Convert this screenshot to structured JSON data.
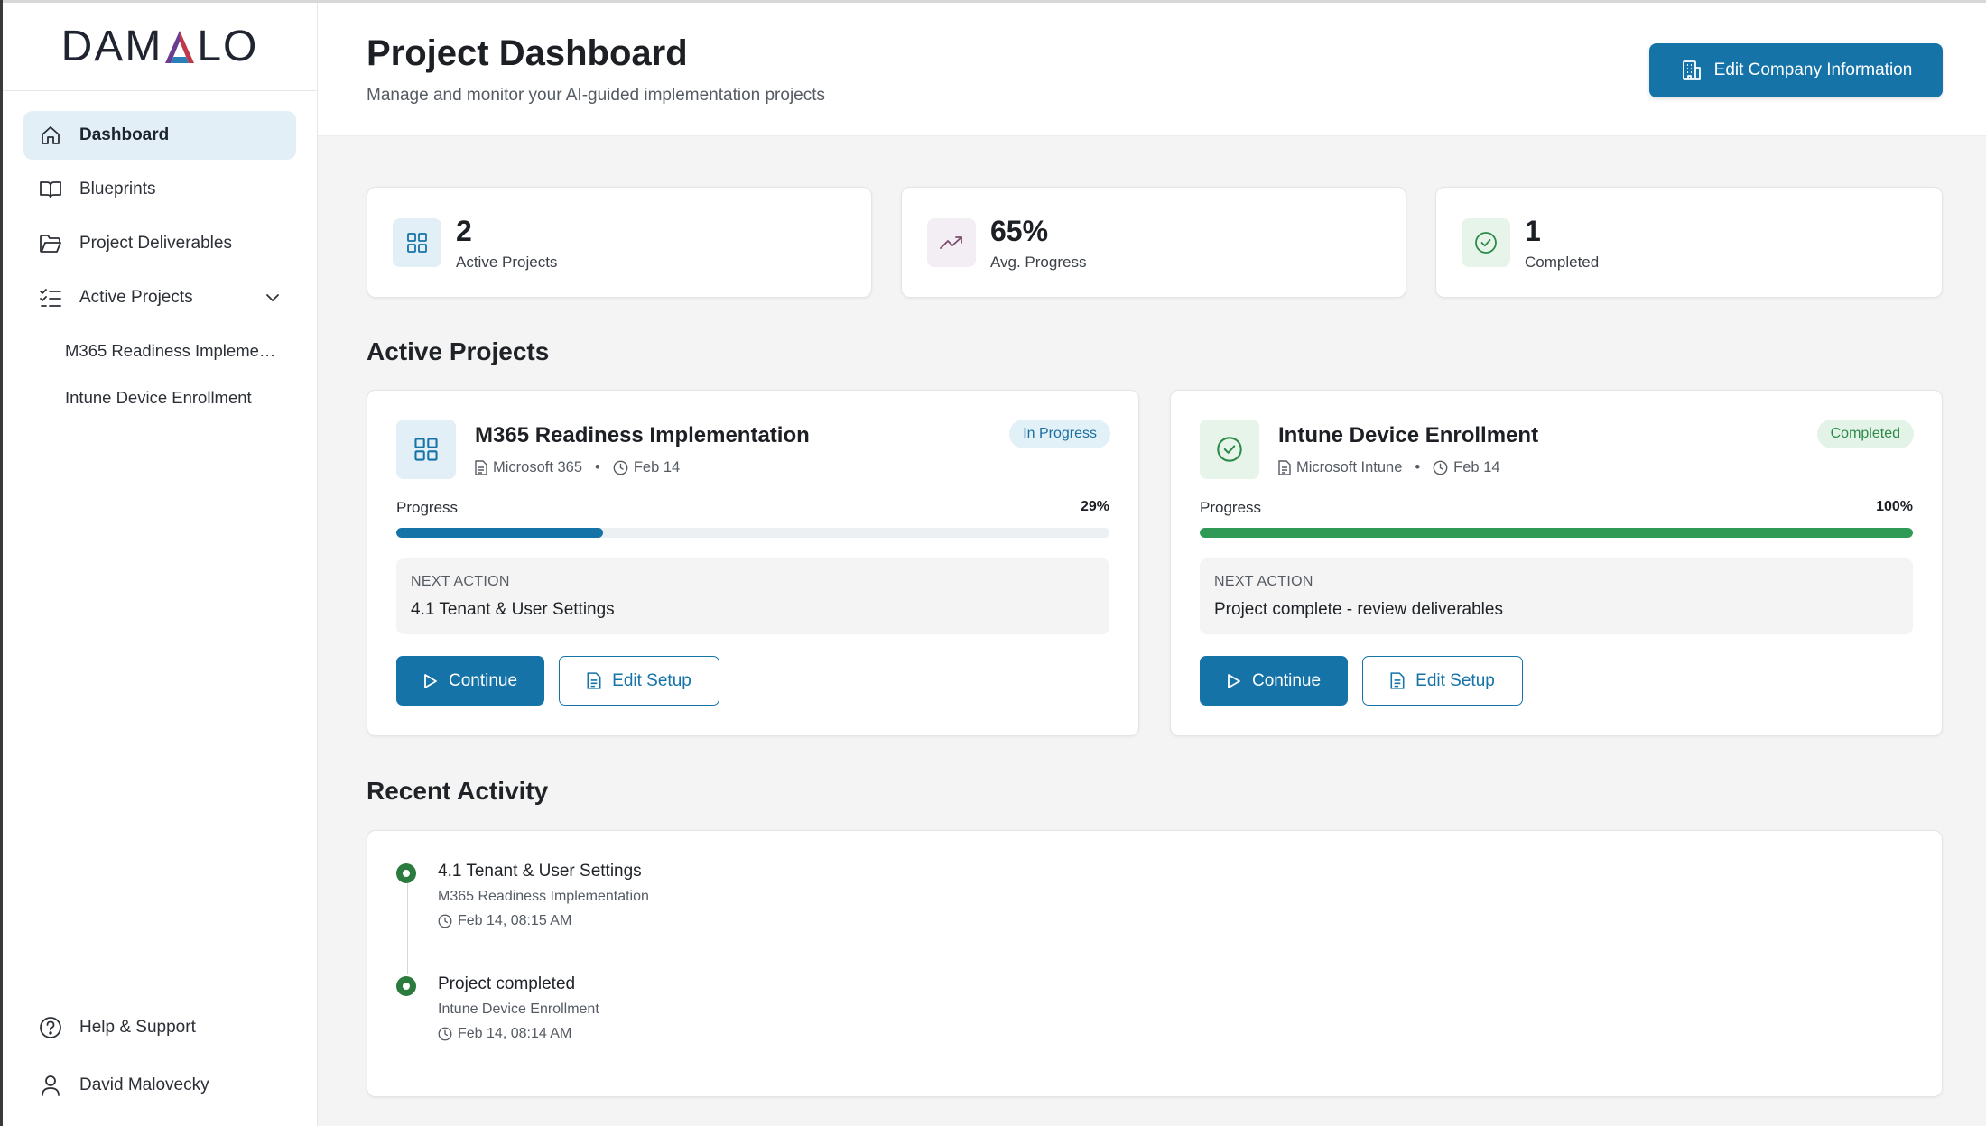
{
  "brand": {
    "name_left": "DAM",
    "name_right": "LO",
    "logo_mark": "A-triangle"
  },
  "sidebar": {
    "items": [
      {
        "label": "Dashboard",
        "icon": "home-icon",
        "active": true
      },
      {
        "label": "Blueprints",
        "icon": "book-icon"
      },
      {
        "label": "Project Deliverables",
        "icon": "folder-icon"
      },
      {
        "label": "Active Projects",
        "icon": "list-check-icon",
        "expanded": true
      }
    ],
    "sub_items": [
      {
        "label": "M365 Readiness Impleme…"
      },
      {
        "label": "Intune Device Enrollment"
      }
    ],
    "bottom": [
      {
        "label": "Help & Support",
        "icon": "help-circle-icon"
      },
      {
        "label": "David Malovecky",
        "icon": "user-icon"
      }
    ]
  },
  "header": {
    "title": "Project Dashboard",
    "subtitle": "Manage and monitor your AI-guided implementation projects",
    "edit_company_label": "Edit Company Information"
  },
  "stats": [
    {
      "value": "2",
      "label": "Active Projects",
      "icon": "grid-icon"
    },
    {
      "value": "65%",
      "label": "Avg. Progress",
      "icon": "trending-up-icon"
    },
    {
      "value": "1",
      "label": "Completed",
      "icon": "check-circle-icon"
    }
  ],
  "sections": {
    "active_projects": "Active Projects",
    "recent_activity": "Recent Activity"
  },
  "projects": [
    {
      "title": "M365 Readiness Implementation",
      "blueprint": "Microsoft 365",
      "date": "Feb 14",
      "status": "In Progress",
      "progress_label": "Progress",
      "progress_value": 29,
      "progress_text": "29%",
      "next_action_label": "NEXT ACTION",
      "next_action": "4.1 Tenant & User Settings",
      "continue_label": "Continue",
      "edit_label": "Edit Setup",
      "icon": "grid-icon"
    },
    {
      "title": "Intune Device Enrollment",
      "blueprint": "Microsoft Intune",
      "date": "Feb 14",
      "status": "Completed",
      "progress_label": "Progress",
      "progress_value": 100,
      "progress_text": "100%",
      "next_action_label": "NEXT ACTION",
      "next_action": "Project complete - review deliverables",
      "continue_label": "Continue",
      "edit_label": "Edit Setup",
      "icon": "check-circle-icon"
    }
  ],
  "activity": [
    {
      "title": "4.1 Tenant & User Settings",
      "project": "M365 Readiness Implementation",
      "time": "Feb 14, 08:15 AM"
    },
    {
      "title": "Project completed",
      "project": "Intune Device Enrollment",
      "time": "Feb 14, 08:14 AM"
    }
  ],
  "colors": {
    "primary": "#1573a8",
    "success": "#2b8a47",
    "active_nav_bg": "#e3eff6",
    "progress_blue": "#1573a8",
    "progress_green": "#2f9a55"
  }
}
